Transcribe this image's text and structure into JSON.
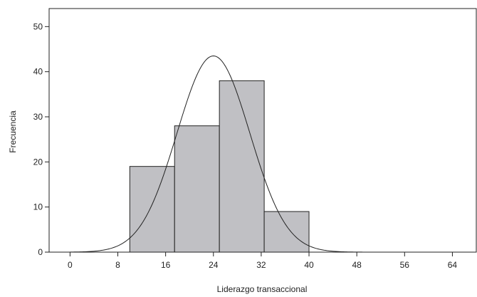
{
  "chart_data": {
    "type": "bar",
    "title": "",
    "xlabel": "Liderazgo transaccional",
    "ylabel": "Frecuencia",
    "xlim": [
      -3.5,
      68
    ],
    "ylim": [
      0,
      54
    ],
    "x_ticks": [
      "0",
      "8",
      "16",
      "24",
      "32",
      "40",
      "48",
      "56",
      "64"
    ],
    "y_ticks": [
      "0",
      "10",
      "20",
      "30",
      "40",
      "50"
    ],
    "bins": [
      {
        "start": 10,
        "end": 17.5,
        "value": 19
      },
      {
        "start": 17.5,
        "end": 25,
        "value": 28
      },
      {
        "start": 25,
        "end": 32.5,
        "value": 38
      },
      {
        "start": 32.5,
        "end": 40,
        "value": 9
      }
    ],
    "normal_curve": {
      "mean": 24,
      "peak": 43.5,
      "sd": 6.1
    },
    "colors": {
      "bar_fill": "#c0c0c4",
      "bar_stroke": "#222222",
      "curve": "#222222"
    }
  }
}
